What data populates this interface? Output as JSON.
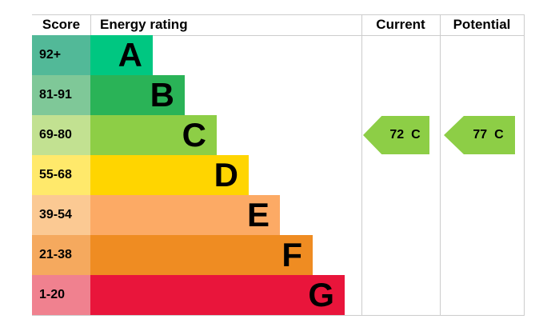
{
  "header": {
    "score": "Score",
    "energy_rating": "Energy rating",
    "current": "Current",
    "potential": "Potential"
  },
  "chart_data": {
    "type": "bar",
    "title": "Energy rating",
    "description": "EPC energy efficiency rating chart",
    "bands": [
      {
        "letter": "A",
        "score_range": "92+",
        "color": "#00c781",
        "tint_color": "#52b998"
      },
      {
        "letter": "B",
        "score_range": "81-91",
        "color": "#2ab357",
        "tint_color": "#7fc898"
      },
      {
        "letter": "C",
        "score_range": "69-80",
        "color": "#8dce46",
        "tint_color": "#c2e191"
      },
      {
        "letter": "D",
        "score_range": "55-68",
        "color": "#ffd500",
        "tint_color": "#ffe96b"
      },
      {
        "letter": "E",
        "score_range": "39-54",
        "color": "#fcaa65",
        "tint_color": "#fbc993"
      },
      {
        "letter": "F",
        "score_range": "21-38",
        "color": "#ef8c22",
        "tint_color": "#f5a95e"
      },
      {
        "letter": "G",
        "score_range": "1-20",
        "color": "#e9153b",
        "tint_color": "#f0818f"
      }
    ],
    "current": {
      "value": "72",
      "band": "C",
      "color": "#8dce46"
    },
    "potential": {
      "value": "77",
      "band": "C",
      "color": "#8dce46"
    },
    "grid_color": "#cccccc"
  }
}
